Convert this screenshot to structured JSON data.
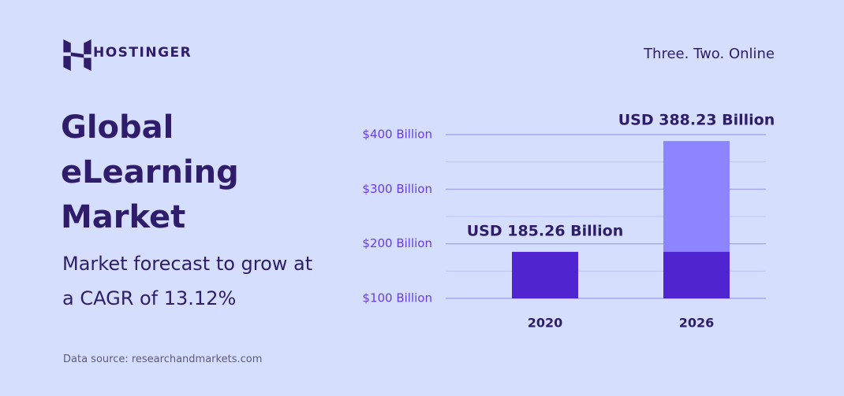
{
  "brand": "HOSTINGER",
  "tagline": "Three. Two. Online",
  "chart_data": {
    "type": "bar",
    "title": "Global eLearning Market",
    "subtitle": "Market forecast to grow at a CAGR of 13.12%",
    "source": "Data source: researchandmarkets.com",
    "categories": [
      "2020",
      "2026"
    ],
    "series": [
      {
        "color": "#8c85ff",
        "values": [
          null,
          388.23
        ],
        "value_labels": [
          null,
          "USD 388.23 Billion"
        ]
      },
      {
        "color": "#5025d1",
        "values": [
          185.26,
          185.26
        ],
        "value_labels": [
          "USD 185.26 Billion",
          null
        ]
      }
    ],
    "ylim": [
      100,
      400
    ],
    "yticks": [
      {
        "value": 100,
        "label": "$100 Billion"
      },
      {
        "value": 200,
        "label": "$200 Billion"
      },
      {
        "value": 300,
        "label": "$300 Billion"
      },
      {
        "value": 400,
        "label": "$400 Billion"
      }
    ],
    "minor_yticks": [
      150,
      250,
      350
    ],
    "grid": true
  }
}
